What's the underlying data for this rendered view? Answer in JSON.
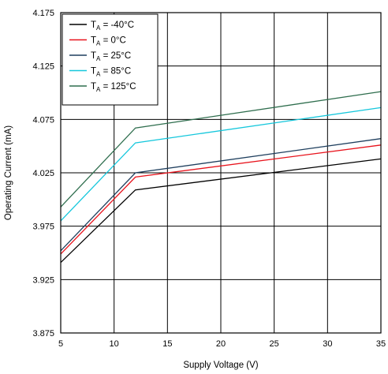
{
  "chart_data": {
    "type": "line",
    "title": "",
    "xlabel": "Supply Voltage (V)",
    "ylabel": "Operating Current (mA)",
    "xlim": [
      5,
      35
    ],
    "ylim": [
      3.875,
      4.175
    ],
    "x_ticks": [
      "5",
      "10",
      "15",
      "20",
      "25",
      "30",
      "35"
    ],
    "y_ticks": [
      "3.875",
      "3.925",
      "3.975",
      "4.025",
      "4.075",
      "4.125",
      "4.175"
    ],
    "grid": true,
    "legend_position": "top-left",
    "series": [
      {
        "legend_main": "T",
        "legend_sub": "A",
        "legend_rest": " = -40°C",
        "color": "#000000",
        "x": [
          5,
          12,
          35
        ],
        "y": [
          3.941,
          4.009,
          4.038
        ]
      },
      {
        "legend_main": "T",
        "legend_sub": "A",
        "legend_rest": " = 0°C",
        "color": "#e8131c",
        "x": [
          5,
          12,
          35
        ],
        "y": [
          3.949,
          4.021,
          4.051
        ]
      },
      {
        "legend_main": "T",
        "legend_sub": "A",
        "legend_rest": " = 25°C",
        "color": "#1f3f5e",
        "x": [
          5,
          12,
          35
        ],
        "y": [
          3.952,
          4.025,
          4.057
        ]
      },
      {
        "legend_main": "T",
        "legend_sub": "A",
        "legend_rest": " = 85°C",
        "color": "#15c7dc",
        "x": [
          5,
          12,
          35
        ],
        "y": [
          3.98,
          4.053,
          4.086
        ]
      },
      {
        "legend_main": "T",
        "legend_sub": "A",
        "legend_rest": " = 125°C",
        "color": "#2f6e4e",
        "x": [
          5,
          12,
          35
        ],
        "y": [
          3.993,
          4.067,
          4.101
        ]
      }
    ]
  }
}
